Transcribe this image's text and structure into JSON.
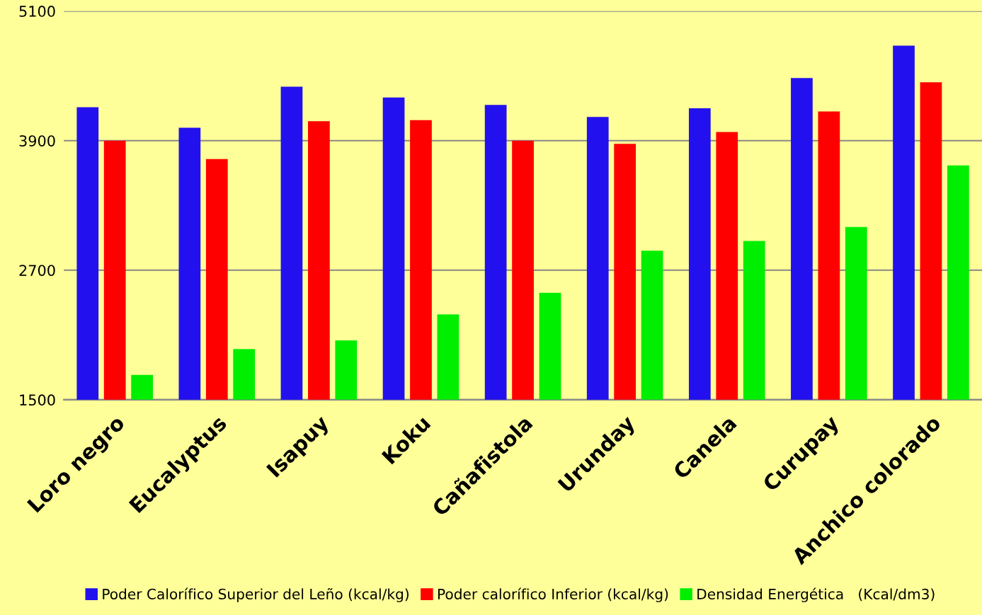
{
  "chart_data": {
    "type": "bar",
    "categories": [
      "Loro negro",
      "Eucalyptus",
      "Isapuy",
      "Koku",
      "Cañafistola",
      "Urunday",
      "Canela",
      "Curupay",
      "Anchico colorado"
    ],
    "series": [
      {
        "name": "Poder Calorífico Superior del Leño (kcal/kg)",
        "color": "#2211ee",
        "values": [
          4210,
          4020,
          4400,
          4300,
          4230,
          4120,
          4200,
          4480,
          4780
        ]
      },
      {
        "name": "Poder calorífico Inferior (kcal/kg)",
        "color": "#ff0000",
        "values": [
          3900,
          3730,
          4080,
          4090,
          3900,
          3870,
          3980,
          4170,
          4440
        ]
      },
      {
        "name": "Densidad Energética   (Kcal/dm3)",
        "color": "#00ee00",
        "values": [
          1730,
          1970,
          2050,
          2290,
          2490,
          2880,
          2970,
          3100,
          3670
        ]
      }
    ],
    "ylim": [
      1500,
      5100
    ],
    "yticks": [
      1500,
      2700,
      3900,
      5100
    ],
    "grid": "y",
    "legend": "bottom"
  }
}
